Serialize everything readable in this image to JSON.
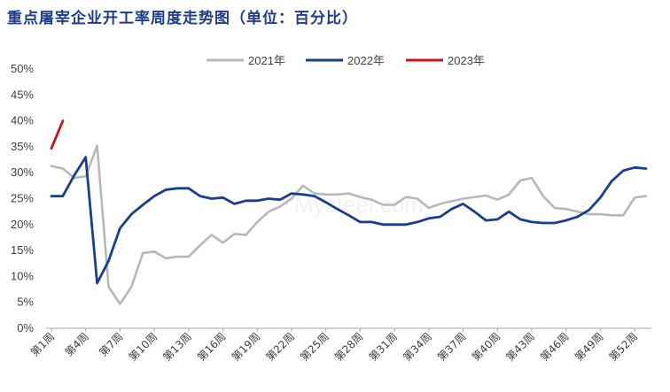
{
  "title": "重点屠宰企业开工率周度走势图（单位：百分比）",
  "watermark": "Mysteel.com",
  "colors": {
    "title": "#1f3c8c"
  },
  "chart_data": {
    "type": "line",
    "ylim": [
      0,
      50
    ],
    "y_ticks": [
      "0%",
      "5%",
      "10%",
      "15%",
      "20%",
      "25%",
      "30%",
      "35%",
      "40%",
      "45%",
      "50%"
    ],
    "x_tick_labels": [
      "第1周",
      "第4周",
      "第7周",
      "第10周",
      "第13周",
      "第16周",
      "第19周",
      "第22周",
      "第25周",
      "第28周",
      "第31周",
      "第34周",
      "第37周",
      "第40周",
      "第43周",
      "第46周",
      "第49周",
      "第52周"
    ],
    "x_tick_weeks": [
      1,
      4,
      7,
      10,
      13,
      16,
      19,
      22,
      25,
      28,
      31,
      34,
      37,
      40,
      43,
      46,
      49,
      52
    ],
    "legend_position": "top",
    "grid": false,
    "series": [
      {
        "name": "2021年",
        "color": "#b8b8b8",
        "x": [
          1,
          2,
          3,
          4,
          5,
          6,
          7,
          8,
          9,
          10,
          11,
          12,
          13,
          14,
          15,
          16,
          17,
          18,
          19,
          20,
          21,
          22,
          23,
          24,
          25,
          26,
          27,
          28,
          29,
          30,
          31,
          32,
          33,
          34,
          35,
          36,
          37,
          38,
          39,
          40,
          41,
          42,
          43,
          44,
          45,
          46,
          47,
          48,
          49,
          50,
          51,
          52,
          53
        ],
        "values": [
          31.3,
          30.8,
          29.0,
          29.3,
          35.2,
          8.0,
          4.7,
          8.0,
          14.5,
          14.8,
          13.5,
          13.8,
          13.8,
          16.0,
          18.0,
          16.5,
          18.2,
          18.0,
          20.5,
          22.5,
          23.5,
          25.0,
          27.5,
          26.0,
          25.8,
          25.8,
          26.0,
          25.3,
          24.8,
          23.8,
          23.8,
          25.3,
          25.0,
          23.2,
          24.0,
          24.5,
          25.0,
          25.3,
          25.6,
          24.8,
          25.8,
          28.5,
          29.0,
          25.5,
          23.2,
          23.0,
          22.5,
          22.0,
          22.0,
          21.8,
          21.8,
          25.2,
          25.5
        ]
      },
      {
        "name": "2022年",
        "color": "#1a3d8f",
        "x": [
          1,
          2,
          3,
          4,
          5,
          6,
          7,
          8,
          9,
          10,
          11,
          12,
          13,
          14,
          15,
          16,
          17,
          18,
          19,
          20,
          21,
          22,
          23,
          24,
          25,
          26,
          27,
          28,
          29,
          30,
          31,
          32,
          33,
          34,
          35,
          36,
          37,
          38,
          39,
          40,
          41,
          42,
          43,
          44,
          45,
          46,
          47,
          48,
          49,
          50,
          51,
          52,
          53
        ],
        "values": [
          25.5,
          25.5,
          29.5,
          33.0,
          8.7,
          13.0,
          19.3,
          22.0,
          23.8,
          25.5,
          26.7,
          27.0,
          27.0,
          25.5,
          25.0,
          25.2,
          24.0,
          24.6,
          24.6,
          25.0,
          24.8,
          26.0,
          25.8,
          25.5,
          24.3,
          23.0,
          21.8,
          20.5,
          20.5,
          20.0,
          20.0,
          20.0,
          20.5,
          21.2,
          21.5,
          23.0,
          24.0,
          22.5,
          20.8,
          21.0,
          22.5,
          21.0,
          20.5,
          20.3,
          20.3,
          20.8,
          21.5,
          22.8,
          25.2,
          28.4,
          30.4,
          31.0,
          30.8
        ]
      },
      {
        "name": "2023年",
        "color": "#c0141e",
        "x": [
          1,
          2
        ],
        "values": [
          34.7,
          40.0
        ]
      }
    ]
  }
}
